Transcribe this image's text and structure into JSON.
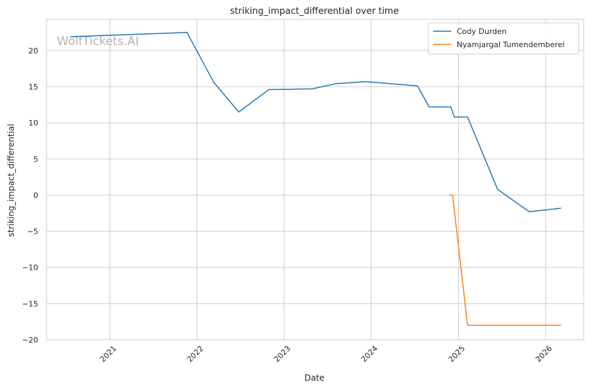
{
  "chart_data": {
    "type": "line",
    "title": "striking_impact_differential over time",
    "xlabel": "Date",
    "ylabel": "striking_impact_differential",
    "watermark": "WolfTickets.AI",
    "xlim": [
      "2020-04-10",
      "2026-06-10"
    ],
    "ylim": [
      -20,
      24.3
    ],
    "x_ticks": [
      {
        "date": "2021-01-01",
        "label": "2021"
      },
      {
        "date": "2022-01-01",
        "label": "2022"
      },
      {
        "date": "2023-01-01",
        "label": "2023"
      },
      {
        "date": "2024-01-01",
        "label": "2024"
      },
      {
        "date": "2025-01-01",
        "label": "2025"
      },
      {
        "date": "2026-01-01",
        "label": "2026"
      }
    ],
    "y_ticks": [
      {
        "value": 20,
        "label": "20"
      },
      {
        "value": 15,
        "label": "15"
      },
      {
        "value": 10,
        "label": "10"
      },
      {
        "value": 5,
        "label": "5"
      },
      {
        "value": 0,
        "label": "0"
      },
      {
        "value": -5,
        "label": "−5"
      },
      {
        "value": -10,
        "label": "−10"
      },
      {
        "value": -15,
        "label": "−15"
      },
      {
        "value": -20,
        "label": "−20"
      }
    ],
    "grid": true,
    "legend_position": "top-right",
    "series": [
      {
        "name": "Cody Durden",
        "color": "#1f77b4",
        "points": [
          {
            "x": "2020-07-18",
            "y": 21.9
          },
          {
            "x": "2021-11-20",
            "y": 22.5
          },
          {
            "x": "2022-03-12",
            "y": 15.6
          },
          {
            "x": "2022-06-25",
            "y": 11.5
          },
          {
            "x": "2022-10-29",
            "y": 14.6
          },
          {
            "x": "2023-04-29",
            "y": 14.7
          },
          {
            "x": "2023-08-05",
            "y": 15.4
          },
          {
            "x": "2023-12-09",
            "y": 15.7
          },
          {
            "x": "2024-07-13",
            "y": 15.1
          },
          {
            "x": "2024-08-31",
            "y": 12.2
          },
          {
            "x": "2024-11-30",
            "y": 12.2
          },
          {
            "x": "2024-12-14",
            "y": 10.8
          },
          {
            "x": "2025-02-08",
            "y": 10.8
          },
          {
            "x": "2025-06-14",
            "y": 0.8
          },
          {
            "x": "2025-10-25",
            "y": -2.3
          },
          {
            "x": "2026-03-07",
            "y": -1.8
          }
        ]
      },
      {
        "name": "Nyamjargal Tumendemberel",
        "color": "#ff7f0e",
        "points": [
          {
            "x": "2024-11-23",
            "y": 0.0
          },
          {
            "x": "2024-12-07",
            "y": 0.0
          },
          {
            "x": "2025-02-08",
            "y": -18.0
          },
          {
            "x": "2026-03-07",
            "y": -18.0
          }
        ]
      }
    ]
  }
}
